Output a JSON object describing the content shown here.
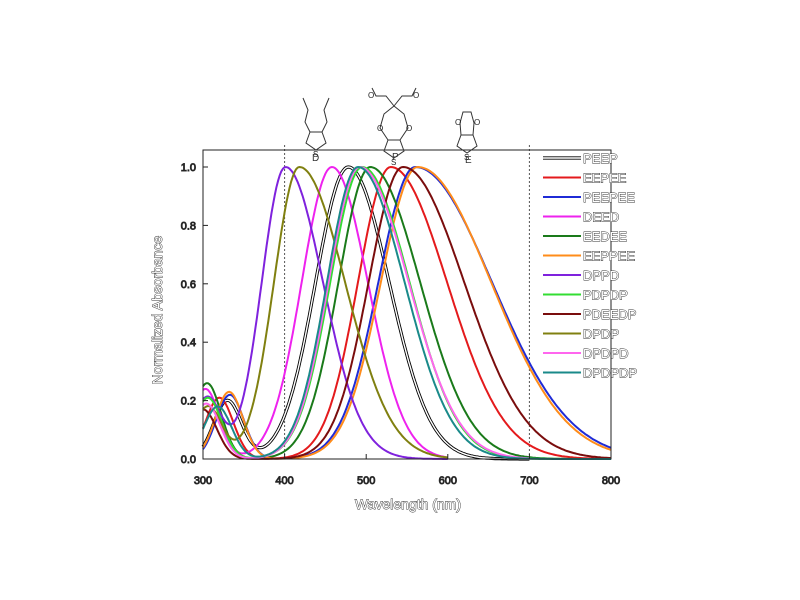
{
  "chart_data": {
    "type": "line",
    "xlabel": "Wavelength (nm)",
    "ylabel": "Normalized Absorbance",
    "xlim": [
      300,
      800
    ],
    "ylim": [
      0,
      1.05
    ],
    "x_ticks": [
      "300",
      "400",
      "500",
      "600",
      "700",
      "800"
    ],
    "y_ticks": [
      "0.0",
      "0.2",
      "0.4",
      "0.6",
      "0.8",
      "1.0"
    ],
    "grid": false,
    "legend_position": "right",
    "reference_lines": [
      400,
      700
    ],
    "series": [
      {
        "name": "PEEP",
        "color": "#000000",
        "double": true,
        "peak": 478,
        "sigma_left": 40,
        "sigma_right": 50,
        "x_end": 700
      },
      {
        "name": "EEPEE",
        "color": "#e41a1c",
        "peak": 530,
        "sigma_left": 40,
        "sigma_right": 69,
        "x_end": 800
      },
      {
        "name": "PEEPEE",
        "color": "#1f2bd6",
        "peak": 560,
        "sigma_left": 45,
        "sigma_right": 94,
        "x_end": 800
      },
      {
        "name": "DEED",
        "color": "#ee22ee",
        "peak": 458,
        "sigma_left": 37,
        "sigma_right": 44,
        "x_end": 600
      },
      {
        "name": "EEDEE",
        "color": "#1a7a1a",
        "peak": 505,
        "sigma_left": 39,
        "sigma_right": 61,
        "x_end": 800
      },
      {
        "name": "EEPPEE",
        "color": "#ff8c1a",
        "peak": 563,
        "sigma_left": 45,
        "sigma_right": 90,
        "x_end": 800
      },
      {
        "name": "DPPD",
        "color": "#7f22dd",
        "peak": 401,
        "sigma_left": 29,
        "sigma_right": 46,
        "x_end": 600
      },
      {
        "name": "PDPDP",
        "color": "#33dd33",
        "peak": 495,
        "sigma_left": 39,
        "sigma_right": 58,
        "x_end": 800
      },
      {
        "name": "PDEEDP",
        "color": "#7a0d0d",
        "peak": 545,
        "sigma_left": 42,
        "sigma_right": 75,
        "x_end": 800
      },
      {
        "name": "DPDP",
        "color": "#808010",
        "peak": 418,
        "sigma_left": 31,
        "sigma_right": 56,
        "x_end": 600
      },
      {
        "name": "DPDPD",
        "color": "#ff66ee",
        "peak": 492,
        "sigma_left": 38,
        "sigma_right": 60,
        "x_end": 700
      },
      {
        "name": "DPDPDP",
        "color": "#1a8a8a",
        "peak": 490,
        "sigma_left": 38,
        "sigma_right": 57,
        "x_end": 800
      }
    ],
    "uv_bands": [
      {
        "series": "PEEP",
        "x": 330,
        "y": 0.2
      },
      {
        "series": "EEPEE",
        "x": 320,
        "y": 0.21
      },
      {
        "series": "PEEPEE",
        "x": 333,
        "y": 0.22
      },
      {
        "series": "DEED",
        "x": 303,
        "y": 0.24
      },
      {
        "series": "EEDEE",
        "x": 305,
        "y": 0.26
      },
      {
        "series": "EEPPEE",
        "x": 332,
        "y": 0.23
      },
      {
        "series": "DPPD",
        "x": 305,
        "y": 0.21
      },
      {
        "series": "PDPDP",
        "x": 306,
        "y": 0.21
      },
      {
        "series": "PDEEDP",
        "x": 300,
        "y": 0.17
      },
      {
        "series": "DPDP",
        "x": 306,
        "y": 0.18
      },
      {
        "series": "DPDPD",
        "x": 304,
        "y": 0.19
      },
      {
        "series": "DPDPDP",
        "x": 318,
        "y": 0.18
      }
    ]
  },
  "structures": [
    {
      "name": "D-structure-icon",
      "label": "D",
      "atom": "S"
    },
    {
      "name": "P-structure-icon",
      "label": "P",
      "atom": "S",
      "oxygens": [
        "O",
        "O",
        "O",
        "O"
      ]
    },
    {
      "name": "E-structure-icon",
      "label": "E",
      "atom": "S",
      "oxygens": [
        "O",
        "O"
      ]
    }
  ]
}
